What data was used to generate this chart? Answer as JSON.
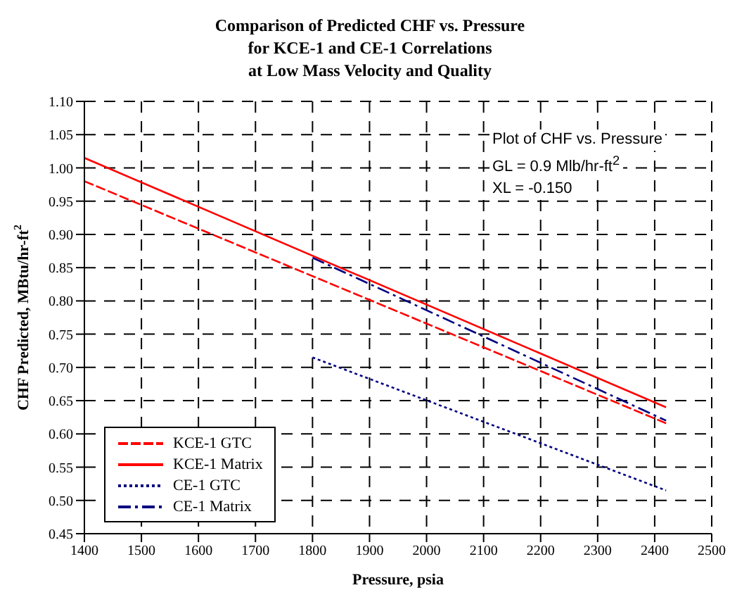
{
  "chart_data": {
    "type": "line",
    "title": "Comparison of  Predicted CHF vs. Pressure\nfor KCE-1 and CE-1 Correlations\nat Low Mass Velocity and Quality",
    "xlabel": "Pressure, psia",
    "ylabel": "CHF Predicted, MBtu/hr-ft$^{2}$",
    "annotations": [
      "Plot of CHF vs. Pressure",
      "GL = 0.9 Mlb/hr-ft$^{2}$",
      "XL = -0.150"
    ],
    "xlim": [
      1400,
      2500
    ],
    "xticks": [
      1400,
      1500,
      1600,
      1700,
      1800,
      1900,
      2000,
      2100,
      2200,
      2300,
      2400,
      2500
    ],
    "ylim": [
      0.45,
      1.1
    ],
    "yticks": [
      {
        "value": 0.45,
        "label": "0.45"
      },
      {
        "value": 0.5,
        "label": "0.50"
      },
      {
        "value": 0.55,
        "label": "0.55"
      },
      {
        "value": 0.6,
        "label": "0.60"
      },
      {
        "value": 0.65,
        "label": "0.65"
      },
      {
        "value": 0.7,
        "label": "0.70"
      },
      {
        "value": 0.75,
        "label": "0.75"
      },
      {
        "value": 0.8,
        "label": "0.80"
      },
      {
        "value": 0.85,
        "label": "0.85"
      },
      {
        "value": 0.9,
        "label": "0.90"
      },
      {
        "value": 0.95,
        "label": "0.95"
      },
      {
        "value": 1.0,
        "label": "1.00"
      },
      {
        "value": 1.05,
        "label": "1.05"
      },
      {
        "value": 1.1,
        "label": "1.10"
      }
    ],
    "grid": true,
    "legend": "bottom left",
    "marker": "none",
    "series": [
      {
        "name": "KCE-1 GTC",
        "color": "#ff0000",
        "line_style": "dashed",
        "x": [
          1400,
          2420
        ],
        "values": [
          0.98,
          0.616
        ]
      },
      {
        "name": "KCE-1 Matrix",
        "color": "#ff0000",
        "line_style": "solid",
        "x": [
          1400,
          2420
        ],
        "values": [
          1.015,
          0.64
        ]
      },
      {
        "name": "CE-1 GTC",
        "color": "#000080",
        "line_style": "dotted",
        "x": [
          1800,
          2420
        ],
        "values": [
          0.715,
          0.515
        ]
      },
      {
        "name": "CE-1 Matrix",
        "color": "#000080",
        "line_style": "dashdot",
        "x": [
          1800,
          2420
        ],
        "values": [
          0.865,
          0.62
        ]
      }
    ]
  }
}
